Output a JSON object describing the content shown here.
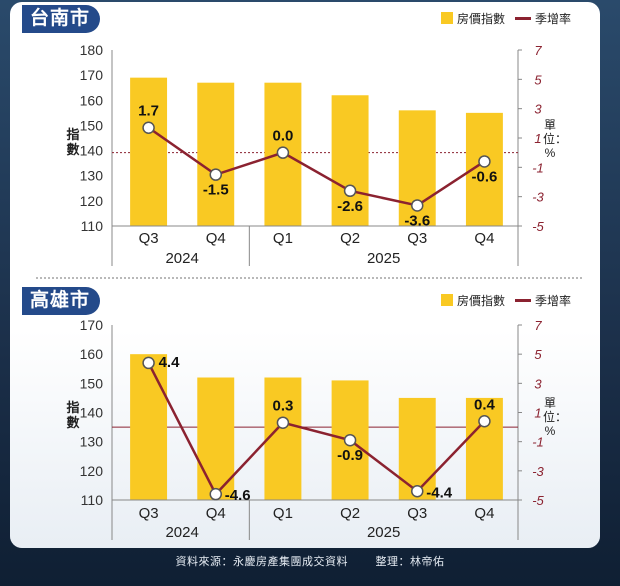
{
  "footer": {
    "source": "資料來源：永慶房產集團成交資料",
    "editor": "整理：林帝佑"
  },
  "legend": {
    "bar_label": "房價指數",
    "line_label": "季增率"
  },
  "colors": {
    "bar": "#f9c923",
    "line": "#8b2230",
    "badge": "#244a8a"
  },
  "chart_data": [
    {
      "type": "bar",
      "title": "台南市",
      "categories": [
        "Q3",
        "Q4",
        "Q1",
        "Q2",
        "Q3",
        "Q4"
      ],
      "years": [
        {
          "label": "2024",
          "span": [
            0,
            1
          ]
        },
        {
          "label": "2025",
          "span": [
            2,
            5
          ]
        }
      ],
      "series": [
        {
          "name": "房價指數",
          "type": "bar",
          "axis": "left",
          "values": [
            169,
            167,
            167,
            162,
            156,
            155
          ]
        },
        {
          "name": "季增率",
          "type": "line",
          "axis": "right",
          "values": [
            1.7,
            -1.5,
            0.0,
            -2.6,
            -3.6,
            -0.6
          ],
          "labels": [
            "1.7",
            "-1.5",
            "0.0",
            "-2.6",
            "-3.6",
            "-0.6"
          ]
        }
      ],
      "ylabel": "指數",
      "y2label": "單位：%",
      "ylim": [
        110,
        180
      ],
      "yticks": [
        110,
        120,
        130,
        140,
        150,
        160,
        170,
        180
      ],
      "y2lim": [
        -5,
        7
      ],
      "y2ticks": [
        -5,
        -3,
        -1,
        1,
        3,
        5,
        7
      ],
      "grid": false,
      "legend": "top-right"
    },
    {
      "type": "bar",
      "title": "高雄市",
      "categories": [
        "Q3",
        "Q4",
        "Q1",
        "Q2",
        "Q3",
        "Q4"
      ],
      "years": [
        {
          "label": "2024",
          "span": [
            0,
            1
          ]
        },
        {
          "label": "2025",
          "span": [
            2,
            5
          ]
        }
      ],
      "series": [
        {
          "name": "房價指數",
          "type": "bar",
          "axis": "left",
          "values": [
            160,
            152,
            152,
            151,
            145,
            145
          ]
        },
        {
          "name": "季增率",
          "type": "line",
          "axis": "right",
          "values": [
            4.4,
            -4.6,
            0.3,
            -0.9,
            -4.4,
            0.4
          ],
          "labels": [
            "4.4",
            "-4.6",
            "0.3",
            "-0.9",
            "-4.4",
            "0.4"
          ]
        }
      ],
      "ylabel": "指數",
      "y2label": "單位：%",
      "ylim": [
        110,
        170
      ],
      "yticks": [
        110,
        120,
        130,
        140,
        150,
        160,
        170
      ],
      "y2lim": [
        -5,
        7
      ],
      "y2ticks": [
        -5,
        -3,
        -1,
        1,
        3,
        5,
        7
      ],
      "grid": false,
      "legend": "top-right"
    }
  ]
}
